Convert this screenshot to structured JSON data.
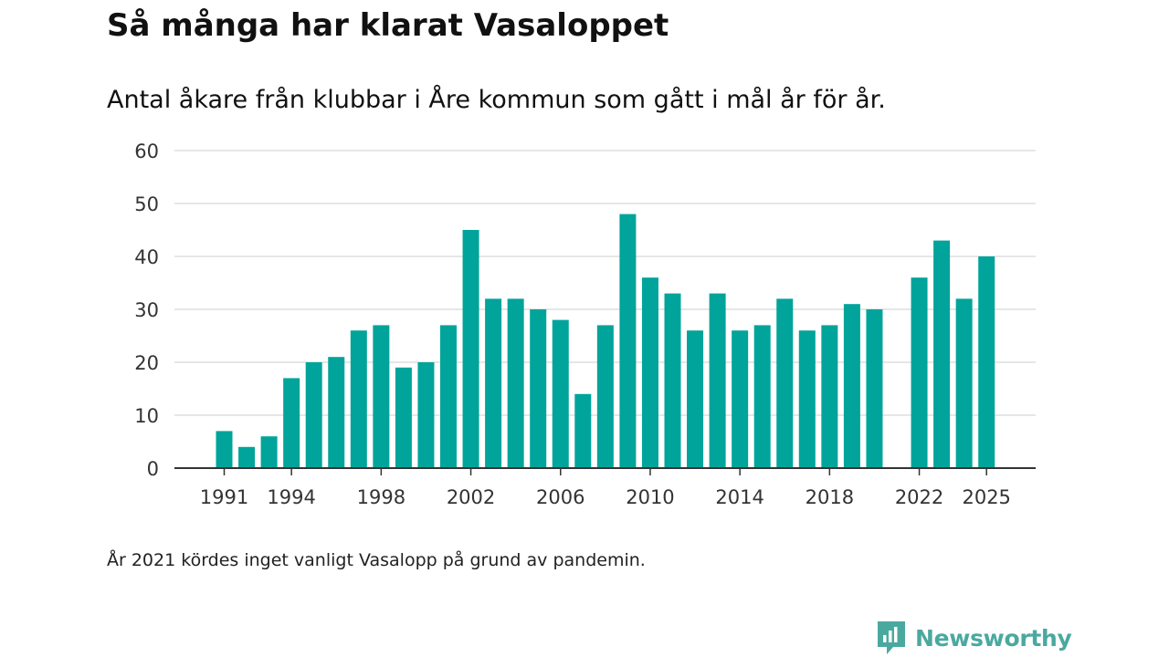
{
  "header": {
    "title": "Så många har klarat Vasaloppet",
    "subtitle": "Antal åkare från klubbar i Åre kommun som gått i mål år för år."
  },
  "footnote": "År 2021 kördes inget vanligt Vasalopp på grund av pandemin.",
  "brand": {
    "name": "Newsworthy",
    "icon": "newsworthy-logo-icon"
  },
  "colors": {
    "bar": "#00a49a",
    "grid": "#dddddd",
    "axis": "#333333",
    "brand": "#4aa99f"
  },
  "chart_data": {
    "type": "bar",
    "title": "Så många har klarat Vasaloppet",
    "subtitle": "Antal åkare från klubbar i Åre kommun som gått i mål år för år.",
    "xlabel": "",
    "ylabel": "",
    "ylim": [
      0,
      60
    ],
    "yticks": [
      0,
      10,
      20,
      30,
      40,
      50,
      60
    ],
    "xticks": [
      1991,
      1994,
      1998,
      2002,
      2006,
      2010,
      2014,
      2018,
      2022,
      2025
    ],
    "x_range": [
      1991,
      2025
    ],
    "grid": true,
    "legend": "none",
    "categories": [
      1991,
      1992,
      1993,
      1994,
      1995,
      1996,
      1997,
      1998,
      1999,
      2000,
      2001,
      2002,
      2003,
      2004,
      2005,
      2006,
      2007,
      2008,
      2009,
      2010,
      2011,
      2012,
      2013,
      2014,
      2015,
      2016,
      2017,
      2018,
      2019,
      2020,
      2021,
      2022,
      2023,
      2024,
      2025
    ],
    "values": [
      7,
      4,
      6,
      17,
      20,
      21,
      26,
      27,
      19,
      20,
      27,
      45,
      32,
      32,
      30,
      28,
      14,
      27,
      48,
      36,
      33,
      26,
      33,
      26,
      27,
      32,
      26,
      27,
      31,
      30,
      null,
      36,
      43,
      32,
      40
    ]
  }
}
